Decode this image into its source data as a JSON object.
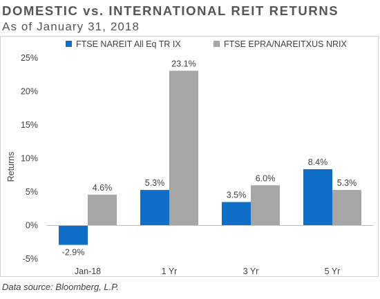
{
  "header": {
    "title": "DOMESTIC vs. INTERNATIONAL REIT RETURNS",
    "subtitle": "As of January 31, 2018"
  },
  "footer": {
    "source": "Data source: Bloomberg, L.P."
  },
  "chart_data": {
    "type": "bar",
    "categories": [
      "Jan-18",
      "1 Yr",
      "3 Yr",
      "5 Yr"
    ],
    "series": [
      {
        "name": "FTSE NAREIT All Eq TR IX",
        "color": "#0f6fc6",
        "values": [
          -2.9,
          5.3,
          3.5,
          8.4
        ],
        "labels": [
          "-2.9%",
          "5.3%",
          "3.5%",
          "8.4%"
        ]
      },
      {
        "name": "FTSE EPRA/NAREITXUS NRIX",
        "color": "#a6a6a6",
        "values": [
          4.6,
          23.1,
          6.0,
          5.3
        ],
        "labels": [
          "4.6%",
          "23.1%",
          "6.0%",
          "5.3%"
        ]
      }
    ],
    "ylabel": "Returns",
    "ylim": [
      -5,
      25
    ],
    "yticks": [
      -5,
      0,
      5,
      10,
      15,
      20,
      25
    ],
    "ytick_labels": [
      "-5%",
      "0%",
      "5%",
      "10%",
      "15%",
      "20%",
      "25%"
    ],
    "grid": false,
    "legend_position": "top"
  }
}
